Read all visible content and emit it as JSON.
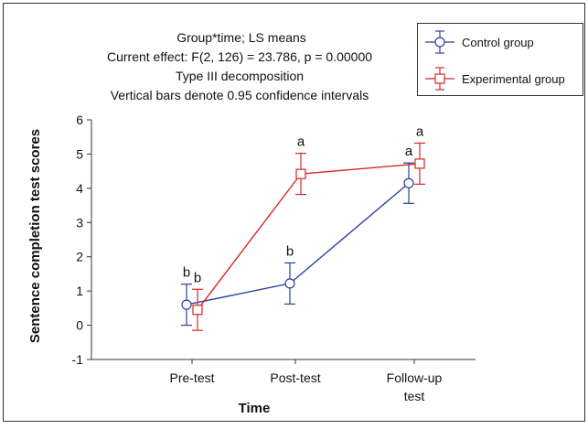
{
  "chart_data": {
    "type": "line",
    "title_lines": [
      "Group*time; LS means",
      "Current effect: F(2, 126) = 23.786, p = 0.00000",
      "Type III decomposition",
      "Vertical bars denote 0.95 confidence intervals"
    ],
    "xlabel": "Time",
    "ylabel": "Sentence completion test scores",
    "categories": [
      "Pre-test",
      "Post-test",
      "Follow-up test"
    ],
    "category_lines": [
      [
        "Pre-test"
      ],
      [
        "Post-test"
      ],
      [
        "Follow-up",
        "test"
      ]
    ],
    "ylim": [
      -1,
      6
    ],
    "yticks": [
      -1,
      0,
      1,
      2,
      3,
      4,
      5,
      6
    ],
    "grid": false,
    "legend_position": "top-right",
    "series": [
      {
        "name": "Control group",
        "color": "#2b3f9e",
        "marker": "circle",
        "values": [
          0.6,
          1.22,
          4.15
        ],
        "ci_low": [
          0.0,
          0.62,
          3.56
        ],
        "ci_high": [
          1.2,
          1.82,
          4.74
        ],
        "labels": [
          "b",
          "b",
          "a"
        ]
      },
      {
        "name": "Experimental group",
        "color": "#d62728",
        "marker": "square",
        "values": [
          0.45,
          4.42,
          4.72
        ],
        "ci_low": [
          -0.15,
          3.82,
          4.12
        ],
        "ci_high": [
          1.05,
          5.02,
          5.32
        ],
        "labels": [
          "b",
          "a",
          "a"
        ]
      }
    ]
  }
}
